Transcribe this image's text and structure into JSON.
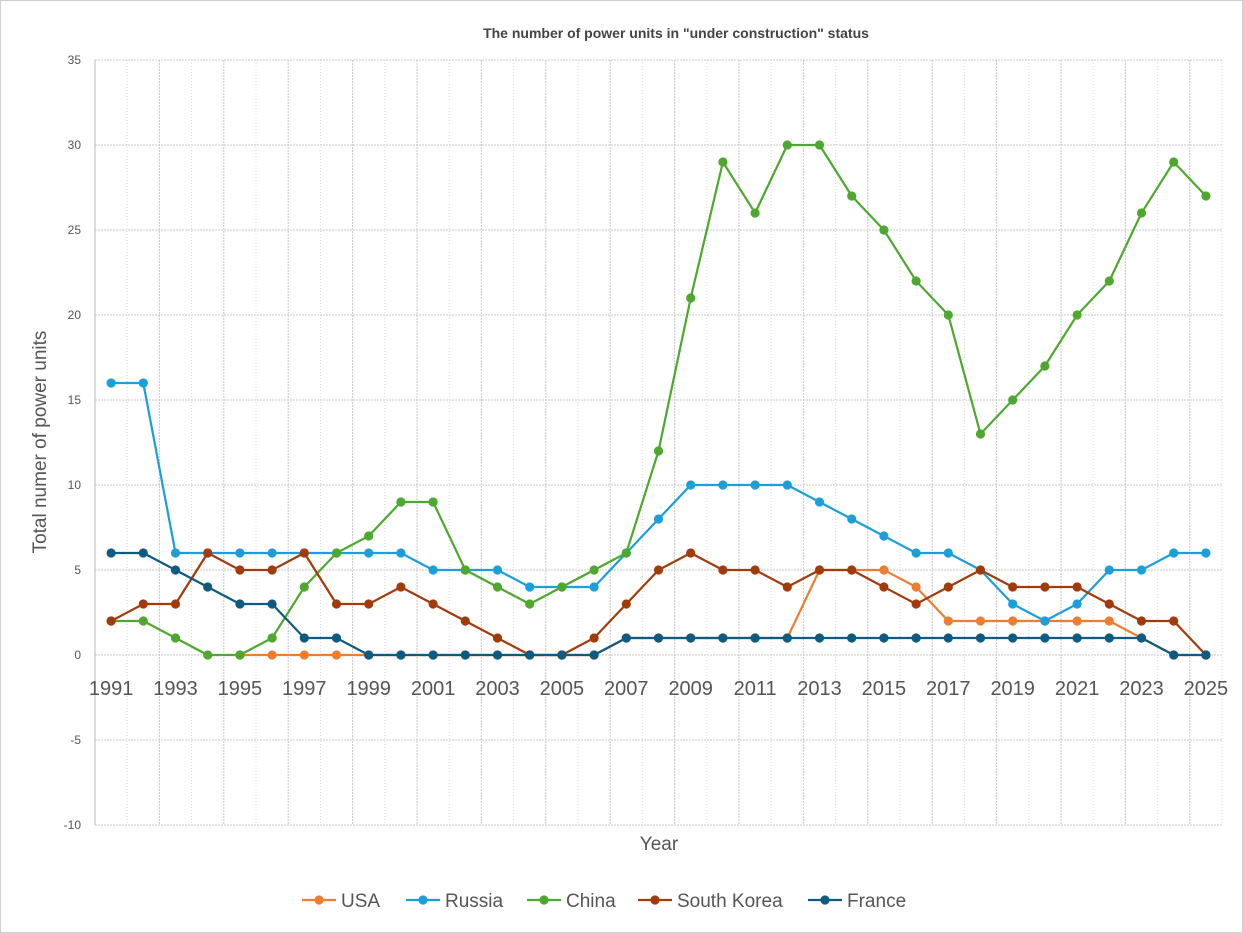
{
  "chart_data": {
    "type": "line",
    "title": "The number of power units in \"under construction\" status",
    "xlabel": "Year",
    "ylabel": "Total numer of power units",
    "ylim": [
      -10,
      35
    ],
    "yticks": [
      -10,
      -5,
      0,
      5,
      10,
      15,
      20,
      25,
      30,
      35
    ],
    "x": [
      1991,
      1992,
      1993,
      1994,
      1995,
      1996,
      1997,
      1998,
      1999,
      2000,
      2001,
      2002,
      2003,
      2004,
      2005,
      2006,
      2007,
      2008,
      2009,
      2010,
      2011,
      2012,
      2013,
      2014,
      2015,
      2016,
      2017,
      2018,
      2019,
      2020,
      2021,
      2022,
      2023,
      2024,
      2025
    ],
    "xtick_labels": [
      "1991",
      "1993",
      "1995",
      "1997",
      "1999",
      "2001",
      "2003",
      "2005",
      "2007",
      "2009",
      "2011",
      "2013",
      "2015",
      "2017",
      "2019",
      "2021",
      "2023",
      "2025"
    ],
    "grid": true,
    "legend_position": "bottom",
    "series": [
      {
        "name": "USA",
        "color": "#ED7D31",
        "values": [
          null,
          null,
          null,
          null,
          0,
          0,
          0,
          0,
          0,
          0,
          0,
          0,
          0,
          0,
          0,
          0,
          1,
          1,
          1,
          1,
          1,
          1,
          5,
          5,
          5,
          4,
          2,
          2,
          2,
          2,
          2,
          2,
          1,
          0,
          0
        ]
      },
      {
        "name": "Russia",
        "color": "#1A9FDA",
        "values": [
          16,
          16,
          6,
          6,
          6,
          6,
          6,
          6,
          6,
          6,
          5,
          5,
          5,
          4,
          4,
          4,
          6,
          8,
          10,
          10,
          10,
          10,
          9,
          8,
          7,
          6,
          6,
          5,
          3,
          2,
          3,
          5,
          5,
          6,
          6
        ]
      },
      {
        "name": "China",
        "color": "#4EA72E",
        "values": [
          2,
          2,
          1,
          0,
          0,
          1,
          4,
          6,
          7,
          9,
          9,
          5,
          4,
          3,
          4,
          5,
          6,
          12,
          21,
          29,
          26,
          30,
          30,
          27,
          25,
          22,
          20,
          13,
          15,
          17,
          20,
          22,
          26,
          29,
          27
        ]
      },
      {
        "name": "South Korea",
        "color": "#A23B0C",
        "values": [
          2,
          3,
          3,
          6,
          5,
          5,
          6,
          3,
          3,
          4,
          3,
          2,
          1,
          0,
          0,
          1,
          3,
          5,
          6,
          5,
          5,
          4,
          5,
          5,
          4,
          3,
          4,
          5,
          4,
          4,
          4,
          3,
          2,
          2,
          0
        ]
      },
      {
        "name": "France",
        "color": "#0F5A80",
        "values": [
          6,
          6,
          5,
          4,
          3,
          3,
          1,
          1,
          0,
          0,
          0,
          0,
          0,
          0,
          0,
          0,
          1,
          1,
          1,
          1,
          1,
          1,
          1,
          1,
          1,
          1,
          1,
          1,
          1,
          1,
          1,
          1,
          1,
          0,
          0
        ]
      }
    ]
  }
}
